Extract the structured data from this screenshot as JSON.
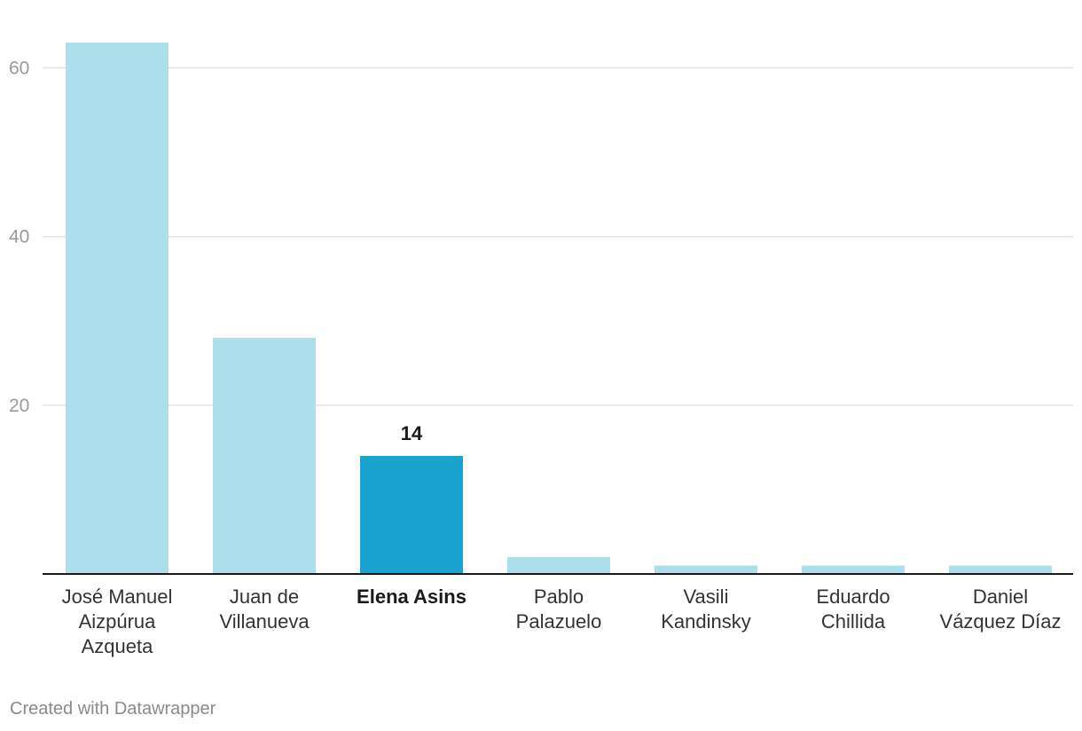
{
  "chart_data": {
    "type": "bar",
    "categories": [
      [
        "José Manuel",
        "Aizpúrua",
        "Azqueta"
      ],
      [
        "Juan de",
        "Villanueva"
      ],
      [
        "Elena Asins"
      ],
      [
        "Pablo",
        "Palazuelo"
      ],
      [
        "Vasili",
        "Kandinsky"
      ],
      [
        "Eduardo",
        "Chillida"
      ],
      [
        "Daniel",
        "Vázquez Díaz"
      ]
    ],
    "values": [
      63,
      28,
      14,
      2,
      1,
      1,
      1
    ],
    "highlight_index": 2,
    "highlight_label": "14",
    "ylim": [
      0,
      63
    ],
    "yticks": [
      20,
      40,
      60
    ],
    "grid": true,
    "colors": {
      "bar": "#addeec",
      "highlight": "#1aa3cf",
      "grid": "#e3e3e3",
      "axis": "#1a1a1a"
    }
  },
  "footer": {
    "credit": "Created with Datawrapper"
  }
}
